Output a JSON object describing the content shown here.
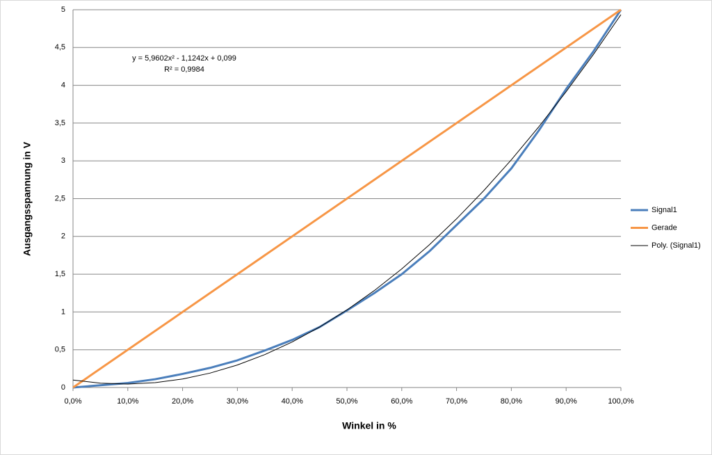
{
  "chart_data": {
    "type": "line",
    "xlabel": "Winkel in %",
    "ylabel": "Ausgangsspannung in V",
    "annotations": [
      "y = 5,9602x² - 1,1242x + 0,099",
      "R² = 0,9984"
    ],
    "xlim": [
      0,
      100
    ],
    "xticks": [
      {
        "value": 0,
        "label": "0,0%"
      },
      {
        "value": 10,
        "label": "10,0%"
      },
      {
        "value": 20,
        "label": "20,0%"
      },
      {
        "value": 30,
        "label": "30,0%"
      },
      {
        "value": 40,
        "label": "40,0%"
      },
      {
        "value": 50,
        "label": "50,0%"
      },
      {
        "value": 60,
        "label": "60,0%"
      },
      {
        "value": 70,
        "label": "70,0%"
      },
      {
        "value": 80,
        "label": "80,0%"
      },
      {
        "value": 90,
        "label": "90,0%"
      },
      {
        "value": 100,
        "label": "100,0%"
      }
    ],
    "ylim": [
      0,
      5
    ],
    "yticks": [
      0,
      {
        "value": 0.5,
        "label": "0,5"
      },
      1,
      {
        "value": 1.5,
        "label": "1,5"
      },
      2,
      {
        "value": 2.5,
        "label": "2,5"
      },
      3,
      {
        "value": 3.5,
        "label": "3,5"
      },
      4,
      {
        "value": 4.5,
        "label": "4,5"
      },
      5
    ],
    "grid": true,
    "legend": "right",
    "series": [
      {
        "name": "Signal1",
        "color": "#4a7ebb",
        "width": 3,
        "x": [
          0,
          5,
          10,
          15,
          20,
          25,
          30,
          35,
          40,
          45,
          50,
          55,
          60,
          65,
          70,
          75,
          80,
          85,
          90,
          95,
          100
        ],
        "values": [
          0,
          0.03,
          0.06,
          0.11,
          0.18,
          0.26,
          0.36,
          0.49,
          0.63,
          0.8,
          1.02,
          1.25,
          1.5,
          1.8,
          2.15,
          2.5,
          2.9,
          3.4,
          3.95,
          4.45,
          5
        ]
      },
      {
        "name": "Gerade",
        "color": "#f79646",
        "width": 3,
        "x": [
          0,
          100
        ],
        "values": [
          0,
          5
        ]
      },
      {
        "name": "Poly. (Signal1)",
        "color": "#000000",
        "width": 1,
        "x": [
          0,
          5,
          10,
          15,
          20,
          25,
          30,
          35,
          40,
          45,
          50,
          55,
          60,
          65,
          70,
          75,
          80,
          85,
          90,
          95,
          100
        ],
        "values": [
          0.099,
          0.0577,
          0.0462,
          0.0645,
          0.1126,
          0.1904,
          0.2981,
          0.4356,
          0.6029,
          0.8,
          1.0269,
          1.2837,
          1.5702,
          1.8865,
          2.2326,
          2.6084,
          3.0141,
          3.4496,
          3.915,
          4.4101,
          4.935
        ]
      }
    ]
  }
}
